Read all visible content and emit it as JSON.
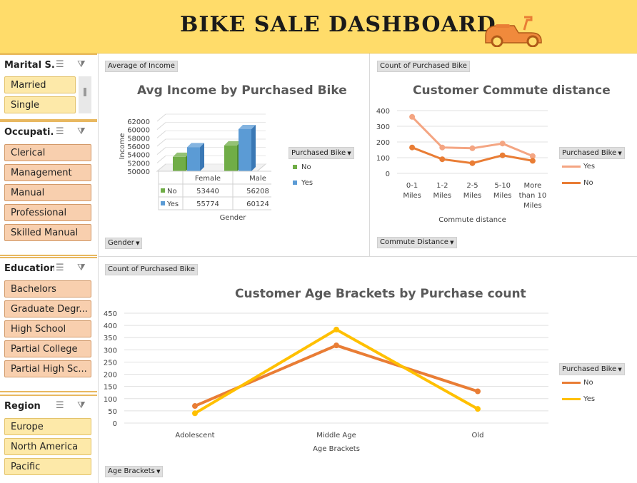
{
  "header": {
    "title": "BIKE SALE DASHBOARD"
  },
  "slicers": {
    "marital": {
      "title": "Marital S...",
      "items": [
        "Married",
        "Single"
      ]
    },
    "occupation": {
      "title": "Occupati...",
      "items": [
        "Clerical",
        "Management",
        "Manual",
        "Professional",
        "Skilled Manual"
      ]
    },
    "education": {
      "title": "Education",
      "items": [
        "Bachelors",
        "Graduate Degr...",
        "High School",
        "Partial College",
        "Partial High Sc..."
      ]
    },
    "region": {
      "title": "Region",
      "items": [
        "Europe",
        "North America",
        "Pacific"
      ]
    }
  },
  "income_panel": {
    "value_button": "Average of Income",
    "axis_button": "Gender",
    "legend_button": "Purchased Bike",
    "legend": [
      "No",
      "Yes"
    ]
  },
  "commute_panel": {
    "value_button": "Count of Purchased Bike",
    "axis_button": "Commute Distance",
    "legend_button": "Purchased Bike",
    "legend": [
      "Yes",
      "No"
    ]
  },
  "age_panel": {
    "value_button": "Count of Purchased Bike",
    "axis_button": "Age Brackets",
    "legend_button": "Purchased Bike",
    "legend": [
      "No",
      "Yes"
    ]
  },
  "colors": {
    "header_bg": "#ffdc6a",
    "green": "#70ad47",
    "blue": "#5b9bd5",
    "salmon": "#f4a582",
    "orange": "#e97d35",
    "gold": "#ffc000"
  },
  "chart_data": [
    {
      "type": "bar",
      "title": "Avg Income by Purchased Bike",
      "xlabel": "Gender",
      "ylabel": "Income",
      "categories": [
        "Female",
        "Male"
      ],
      "series": [
        {
          "name": "No",
          "values": [
            53440,
            56208
          ]
        },
        {
          "name": "Yes",
          "values": [
            55774,
            60124
          ]
        }
      ],
      "ylim": [
        50000,
        62000
      ],
      "yticks": [
        "62000",
        "60000",
        "58000",
        "56000",
        "54000",
        "52000",
        "50000"
      ],
      "table": [
        [
          "No",
          "53440",
          "56208"
        ],
        [
          "Yes",
          "55774",
          "60124"
        ]
      ]
    },
    {
      "type": "line",
      "title": "Customer Commute distance",
      "xlabel": "Commute distance",
      "categories": [
        "0-1 Miles",
        "1-2 Miles",
        "2-5 Miles",
        "5-10 Miles",
        "More than 10 Miles"
      ],
      "series": [
        {
          "name": "Yes",
          "values": [
            360,
            165,
            160,
            190,
            110
          ]
        },
        {
          "name": "No",
          "values": [
            165,
            90,
            65,
            115,
            80
          ]
        }
      ],
      "ylim": [
        0,
        400
      ],
      "yticks": [
        "400",
        "300",
        "200",
        "100",
        "0"
      ]
    },
    {
      "type": "line",
      "title": "Customer Age Brackets by Purchase count",
      "xlabel": "Age Brackets",
      "categories": [
        "Adolescent",
        "Middle Age",
        "Old"
      ],
      "series": [
        {
          "name": "No",
          "values": [
            70,
            318,
            130
          ]
        },
        {
          "name": "Yes",
          "values": [
            40,
            383,
            58
          ]
        }
      ],
      "ylim": [
        0,
        450
      ],
      "yticks": [
        "450",
        "400",
        "350",
        "300",
        "250",
        "200",
        "150",
        "100",
        "50",
        "0"
      ]
    }
  ]
}
